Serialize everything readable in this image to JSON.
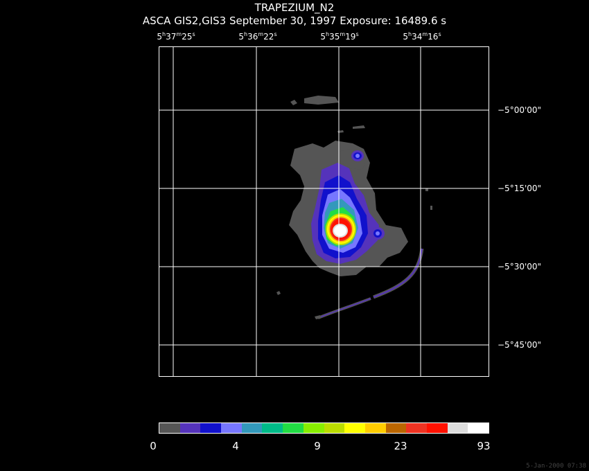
{
  "title": "TRAPEZIUM_N2",
  "subtitle": "ASCA GIS2,GIS3 September 30, 1997 Exposure: 16489.6 s",
  "ra_labels": [
    {
      "h": "5",
      "m": "37",
      "s": "25"
    },
    {
      "h": "5",
      "m": "36",
      "s": "22"
    },
    {
      "h": "5",
      "m": "35",
      "s": "19"
    },
    {
      "h": "5",
      "m": "34",
      "s": "16"
    }
  ],
  "dec_labels": [
    "−5°00'00\"",
    "−5°15'00\"",
    "−5°30'00\"",
    "−5°45'00\""
  ],
  "colorbar": {
    "colors": [
      "#555555",
      "#5533bb",
      "#1111cc",
      "#7777ff",
      "#3399bb",
      "#00bb88",
      "#22dd44",
      "#88ee00",
      "#bbdd00",
      "#ffff00",
      "#ffcc00",
      "#bb6600",
      "#ee3322",
      "#ff1100",
      "#dddddd",
      "#ffffff"
    ],
    "labels": [
      "0",
      "4",
      "9",
      "23",
      "93"
    ]
  },
  "timestamp": "5-Jan-2000 07:38"
}
